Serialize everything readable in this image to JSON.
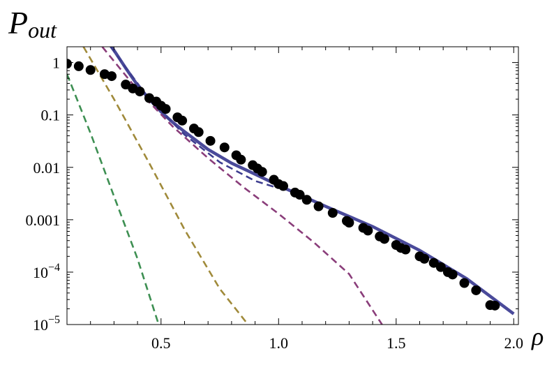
{
  "chart_data": {
    "type": "scatter",
    "title": "",
    "ylabel": {
      "main": "P",
      "sub": "out"
    },
    "xlabel": "ρ",
    "x_scale": "linear",
    "y_scale": "log",
    "xlim": [
      0.1,
      2.02
    ],
    "ylim": [
      1e-05,
      2
    ],
    "x_ticks": [
      {
        "value": 0.5,
        "label": "0.5"
      },
      {
        "value": 1.0,
        "label": "1.0"
      },
      {
        "value": 1.5,
        "label": "1.5"
      },
      {
        "value": 2.0,
        "label": "2.0"
      }
    ],
    "y_ticks": [
      {
        "value": 1,
        "label": "1"
      },
      {
        "value": 0.1,
        "label": "0.1"
      },
      {
        "value": 0.01,
        "label": "0.01"
      },
      {
        "value": 0.001,
        "label": "0.001"
      },
      {
        "value": 0.0001,
        "label": "10",
        "exp": "−4"
      },
      {
        "value": 1e-05,
        "label": "10",
        "exp": "−5"
      }
    ],
    "grid": false,
    "legend": "none",
    "series": [
      {
        "style": "points",
        "color": "#000000",
        "x": [
          0.1,
          0.15,
          0.2,
          0.26,
          0.29,
          0.35,
          0.38,
          0.41,
          0.45,
          0.48,
          0.5,
          0.52,
          0.57,
          0.59,
          0.64,
          0.66,
          0.71,
          0.77,
          0.82,
          0.84,
          0.89,
          0.91,
          0.93,
          0.98,
          1.0,
          1.02,
          1.07,
          1.09,
          1.12,
          1.17,
          1.23,
          1.29,
          1.3,
          1.36,
          1.38,
          1.43,
          1.45,
          1.5,
          1.52,
          1.54,
          1.6,
          1.62,
          1.66,
          1.69,
          1.72,
          1.74,
          1.79,
          1.84,
          1.9,
          1.92
        ],
        "y": [
          0.95,
          0.85,
          0.72,
          0.6,
          0.55,
          0.38,
          0.32,
          0.28,
          0.21,
          0.18,
          0.15,
          0.13,
          0.09,
          0.078,
          0.055,
          0.047,
          0.032,
          0.024,
          0.017,
          0.014,
          0.011,
          0.0095,
          0.0082,
          0.0058,
          0.0048,
          0.0044,
          0.0033,
          0.003,
          0.0024,
          0.0018,
          0.00135,
          0.00095,
          0.00088,
          0.0007,
          0.00062,
          0.00048,
          0.00043,
          0.00033,
          0.00029,
          0.00027,
          0.0002,
          0.00018,
          0.00015,
          0.000125,
          0.0001,
          9e-05,
          6.2e-05,
          4.5e-05,
          2.35e-05,
          2.3e-05
        ]
      },
      {
        "style": "solid",
        "color": "#4a4a9a",
        "x": [
          0.29,
          0.35,
          0.4,
          0.45,
          0.5,
          0.55,
          0.6,
          0.7,
          0.8,
          0.9,
          1.0,
          1.2,
          1.4,
          1.6,
          1.8,
          2.0
        ],
        "y": [
          2,
          0.78,
          0.37,
          0.2,
          0.115,
          0.072,
          0.048,
          0.022,
          0.012,
          0.0074,
          0.0045,
          0.0018,
          0.00074,
          0.00026,
          7.5e-05,
          1.6e-05
        ]
      },
      {
        "style": "dashed",
        "color": "#3d3d8f",
        "x": [
          0.285,
          0.45,
          0.6,
          0.75,
          0.9,
          1.0
        ],
        "y": [
          2,
          0.2,
          0.042,
          0.0125,
          0.0055,
          0.004
        ]
      },
      {
        "style": "dashed",
        "color": "#8a3d7a",
        "x": [
          0.25,
          0.4,
          0.55,
          0.7,
          0.85,
          1.0,
          1.15,
          1.3,
          1.44
        ],
        "y": [
          2,
          0.3,
          0.06,
          0.015,
          0.0042,
          0.0013,
          0.00037,
          9.2e-05,
          1e-05
        ]
      },
      {
        "style": "dashed",
        "color": "#a08a3a",
        "x": [
          0.17,
          0.3,
          0.45,
          0.6,
          0.75,
          0.87
        ],
        "y": [
          2,
          0.2,
          0.012,
          0.00065,
          4.8e-05,
          1e-05
        ]
      },
      {
        "style": "dashed",
        "color": "#3d8f52",
        "x": [
          0.1,
          0.2,
          0.3,
          0.4,
          0.49
        ],
        "y": [
          0.6,
          0.045,
          0.0028,
          0.00018,
          1e-05
        ]
      }
    ]
  }
}
